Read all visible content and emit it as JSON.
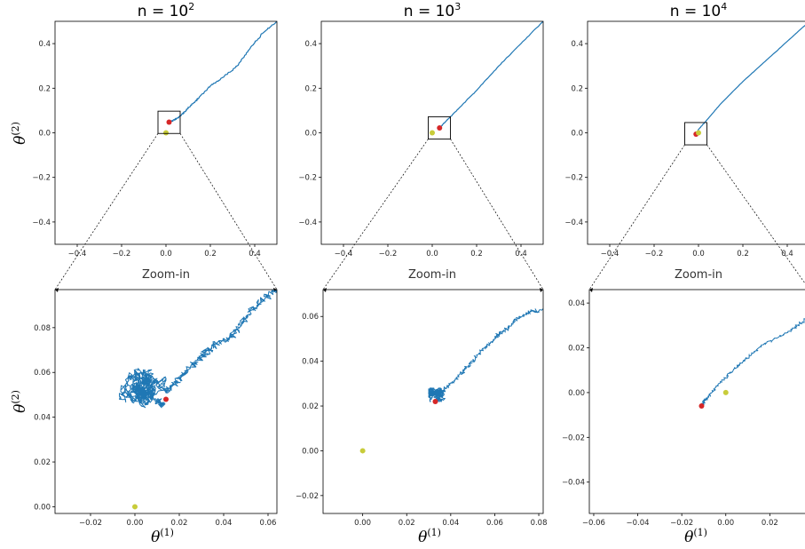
{
  "ylabel": {
    "base": "θ",
    "sup": "(2)"
  },
  "xlabel": {
    "base": "θ",
    "sup": "(1)"
  },
  "zoom_label": "Zoom-in",
  "colors": {
    "trajectory": "#1f77b4",
    "final_point": "#d62728",
    "origin_point": "#c8cc3a",
    "box": "#000000"
  },
  "chart_data": [
    {
      "type": "line",
      "panel": "top",
      "column": 0,
      "title": {
        "prefix": "n = 10",
        "exp": "2"
      },
      "xlim": [
        -0.5,
        0.5
      ],
      "ylim": [
        -0.5,
        0.5
      ],
      "xticks": [
        "−0.4",
        "−0.2",
        "0.0",
        "0.2",
        "0.4"
      ],
      "yticks": [
        "−0.4",
        "−0.2",
        "0.0",
        "0.2",
        "0.4"
      ],
      "series": [
        {
          "x": [
            0.5,
            0.44,
            0.38,
            0.32,
            0.26,
            0.2,
            0.15,
            0.12,
            0.09,
            0.07,
            0.05,
            0.03,
            0.015
          ],
          "y": [
            0.5,
            0.45,
            0.38,
            0.3,
            0.25,
            0.21,
            0.16,
            0.13,
            0.1,
            0.08,
            0.065,
            0.055,
            0.048
          ],
          "jitter": 0.005
        }
      ],
      "points": [
        {
          "x": 0.014,
          "y": 0.048,
          "color": "final_point"
        },
        {
          "x": 0.0,
          "y": 0.0,
          "color": "origin_point"
        }
      ],
      "zoom_box": {
        "x": [
          -0.036,
          0.064
        ],
        "y": [
          -0.003,
          0.097
        ]
      }
    },
    {
      "type": "line",
      "panel": "top",
      "column": 1,
      "title": {
        "prefix": "n = 10",
        "exp": "3"
      },
      "xlim": [
        -0.5,
        0.5
      ],
      "ylim": [
        -0.5,
        0.5
      ],
      "xticks": [
        "−0.4",
        "−0.2",
        "0.0",
        "0.2",
        "0.4"
      ],
      "yticks": [
        "−0.4",
        "−0.2",
        "0.0",
        "0.2",
        "0.4"
      ],
      "series": [
        {
          "x": [
            0.5,
            0.4,
            0.3,
            0.2,
            0.12,
            0.08,
            0.05,
            0.033
          ],
          "y": [
            0.5,
            0.4,
            0.3,
            0.19,
            0.11,
            0.07,
            0.04,
            0.022
          ],
          "jitter": 0.002
        }
      ],
      "points": [
        {
          "x": 0.033,
          "y": 0.022,
          "color": "final_point"
        },
        {
          "x": 0.0,
          "y": 0.0,
          "color": "origin_point"
        }
      ],
      "zoom_box": {
        "x": [
          -0.018,
          0.082
        ],
        "y": [
          -0.028,
          0.072
        ]
      }
    },
    {
      "type": "line",
      "panel": "top",
      "column": 2,
      "title": {
        "prefix": "n = 10",
        "exp": "4"
      },
      "xlim": [
        -0.5,
        0.5
      ],
      "ylim": [
        -0.5,
        0.5
      ],
      "xticks": [
        "−0.4",
        "−0.2",
        "0.0",
        "0.2",
        "0.4"
      ],
      "yticks": [
        "−0.4",
        "−0.2",
        "0.0",
        "0.2",
        "0.4"
      ],
      "series": [
        {
          "x": [
            0.5,
            0.4,
            0.3,
            0.2,
            0.1,
            0.04,
            0.0,
            -0.011
          ],
          "y": [
            0.5,
            0.41,
            0.32,
            0.23,
            0.13,
            0.06,
            0.015,
            -0.006
          ],
          "jitter": 0.001
        }
      ],
      "points": [
        {
          "x": -0.011,
          "y": -0.006,
          "color": "final_point"
        },
        {
          "x": 0.0,
          "y": 0.0,
          "color": "origin_point"
        }
      ],
      "zoom_box": {
        "x": [
          -0.062,
          0.038
        ],
        "y": [
          -0.054,
          0.046
        ]
      }
    },
    {
      "type": "line",
      "panel": "zoom",
      "column": 0,
      "xlim": [
        -0.036,
        0.064
      ],
      "ylim": [
        -0.003,
        0.097
      ],
      "xticks": [
        "−0.02",
        "0.00",
        "0.02",
        "0.04",
        "0.06"
      ],
      "xtick_values": [
        -0.02,
        0.0,
        0.02,
        0.04,
        0.06
      ],
      "yticks": [
        "0.00",
        "0.02",
        "0.04",
        "0.06",
        "0.08"
      ],
      "ytick_values": [
        0.0,
        0.02,
        0.04,
        0.06,
        0.08
      ],
      "series": [
        {
          "x": [
            0.064,
            0.06,
            0.055,
            0.05,
            0.046,
            0.042,
            0.037,
            0.033,
            0.029,
            0.025,
            0.021,
            0.017,
            0.014
          ],
          "y": [
            0.097,
            0.094,
            0.09,
            0.085,
            0.079,
            0.075,
            0.073,
            0.07,
            0.066,
            0.062,
            0.058,
            0.054,
            0.051
          ],
          "jitter": 0.003
        },
        {
          "cloud": true,
          "center": [
            0.005,
            0.052
          ],
          "spread": [
            0.012,
            0.01
          ],
          "steps": 900,
          "step": 0.0016
        }
      ],
      "points": [
        {
          "x": 0.014,
          "y": 0.048,
          "color": "final_point"
        },
        {
          "x": 0.0,
          "y": 0.0,
          "color": "origin_point"
        }
      ]
    },
    {
      "type": "line",
      "panel": "zoom",
      "column": 1,
      "xlim": [
        -0.018,
        0.082
      ],
      "ylim": [
        -0.028,
        0.072
      ],
      "xticks": [
        "0.00",
        "0.02",
        "0.04",
        "0.06",
        "0.08"
      ],
      "xtick_values": [
        0.0,
        0.02,
        0.04,
        0.06,
        0.08
      ],
      "yticks": [
        "−0.02",
        "0.00",
        "0.02",
        "0.04",
        "0.06"
      ],
      "ytick_values": [
        -0.02,
        0.0,
        0.02,
        0.04,
        0.06
      ],
      "series": [
        {
          "x": [
            0.082,
            0.076,
            0.07,
            0.066,
            0.062,
            0.058,
            0.054,
            0.05,
            0.046,
            0.042,
            0.038,
            0.035
          ],
          "y": [
            0.063,
            0.062,
            0.059,
            0.055,
            0.052,
            0.048,
            0.045,
            0.04,
            0.036,
            0.032,
            0.028,
            0.025
          ],
          "jitter": 0.0015
        },
        {
          "cloud": true,
          "center": [
            0.034,
            0.025
          ],
          "spread": [
            0.004,
            0.003
          ],
          "steps": 500,
          "step": 0.0009
        }
      ],
      "points": [
        {
          "x": 0.033,
          "y": 0.022,
          "color": "final_point"
        },
        {
          "x": 0.0,
          "y": 0.0,
          "color": "origin_point"
        }
      ]
    },
    {
      "type": "line",
      "panel": "zoom",
      "column": 2,
      "xlim": [
        -0.062,
        0.038
      ],
      "ylim": [
        -0.054,
        0.046
      ],
      "xticks": [
        "−0.06",
        "−0.04",
        "−0.02",
        "0.00",
        "0.02"
      ],
      "xtick_values": [
        -0.06,
        -0.04,
        -0.02,
        0.0,
        0.02
      ],
      "yticks": [
        "−0.04",
        "−0.02",
        "0.00",
        "0.02",
        "0.04"
      ],
      "ytick_values": [
        -0.04,
        -0.02,
        0.0,
        0.02,
        0.04
      ],
      "series": [
        {
          "x": [
            0.038,
            0.03,
            0.022,
            0.015,
            0.008,
            0.002,
            -0.004,
            -0.008,
            -0.01,
            -0.011
          ],
          "y": [
            0.034,
            0.028,
            0.024,
            0.02,
            0.014,
            0.009,
            0.003,
            -0.002,
            -0.004,
            -0.006
          ],
          "jitter": 0.0012
        }
      ],
      "points": [
        {
          "x": -0.011,
          "y": -0.006,
          "color": "final_point"
        },
        {
          "x": 0.0,
          "y": 0.0,
          "color": "origin_point"
        }
      ]
    }
  ]
}
